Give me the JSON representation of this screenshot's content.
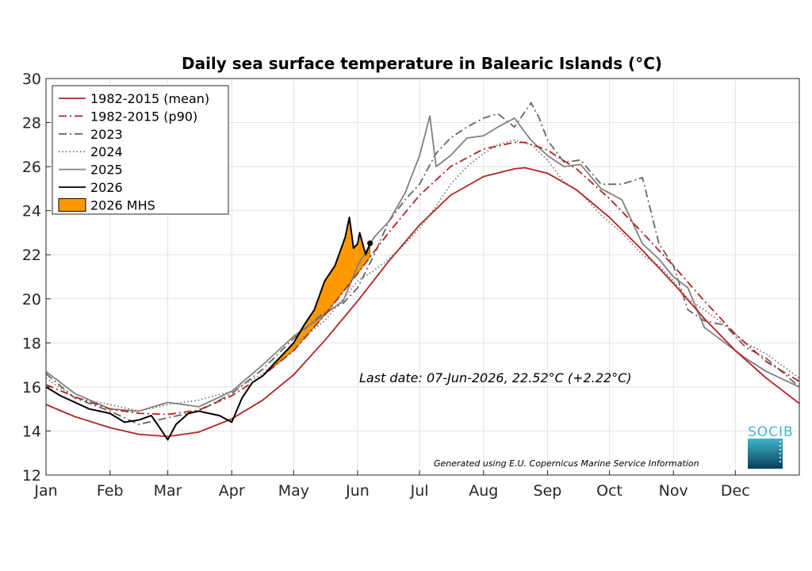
{
  "chart_data": {
    "type": "line",
    "title": "Daily sea surface temperature in Balearic Islands (°C)",
    "xlabel": "",
    "ylabel": "",
    "x_unit": "day of year",
    "xlim": [
      1,
      366
    ],
    "ylim": [
      12,
      30
    ],
    "yticks": [
      12,
      14,
      16,
      18,
      20,
      22,
      24,
      26,
      28,
      30
    ],
    "month_labels": [
      "Jan",
      "Feb",
      "Mar",
      "Apr",
      "May",
      "Jun",
      "Jul",
      "Aug",
      "Sep",
      "Oct",
      "Nov",
      "Dec"
    ],
    "grid": true,
    "legend_position": "top-left",
    "series": [
      {
        "name": "1982-2015 (mean)",
        "color": "#b22222",
        "style": "solid",
        "x": [
          1,
          15,
          32,
          46,
          60,
          75,
          91,
          106,
          121,
          136,
          152,
          167,
          182,
          197,
          213,
          228,
          233,
          244,
          258,
          274,
          289,
          305,
          320,
          335,
          350,
          366
        ],
        "y": [
          15.2,
          14.65,
          14.15,
          13.85,
          13.75,
          13.95,
          14.55,
          15.4,
          16.55,
          18.1,
          19.9,
          21.7,
          23.35,
          24.7,
          25.55,
          25.9,
          25.95,
          25.7,
          24.95,
          23.7,
          22.3,
          20.7,
          19.1,
          17.65,
          16.4,
          15.25
        ]
      },
      {
        "name": "1982-2015 (p90)",
        "color": "#b22222",
        "style": "dashdot",
        "x": [
          1,
          15,
          32,
          46,
          60,
          75,
          91,
          106,
          121,
          136,
          152,
          167,
          182,
          197,
          213,
          228,
          233,
          244,
          258,
          274,
          289,
          305,
          320,
          335,
          350,
          366
        ],
        "y": [
          16.1,
          15.55,
          15.0,
          14.8,
          14.75,
          14.95,
          15.6,
          16.5,
          17.65,
          19.25,
          21.15,
          23.0,
          24.7,
          26.0,
          26.8,
          27.1,
          27.1,
          26.75,
          25.9,
          24.55,
          23.1,
          21.5,
          19.9,
          18.4,
          17.15,
          16.25
        ]
      },
      {
        "name": "2023",
        "color": "#666666",
        "style": "dashdot",
        "x": [
          1,
          15,
          32,
          46,
          60,
          75,
          91,
          106,
          121,
          136,
          145,
          152,
          160,
          167,
          175,
          182,
          190,
          197,
          205,
          213,
          220,
          228,
          236,
          240,
          244,
          252,
          260,
          270,
          280,
          290,
          298,
          305,
          312,
          320,
          330,
          340,
          350,
          366
        ],
        "y": [
          16.6,
          15.5,
          14.9,
          14.3,
          14.6,
          14.9,
          15.7,
          16.8,
          18.2,
          19.4,
          19.8,
          20.5,
          22.0,
          23.5,
          24.5,
          25.2,
          26.6,
          27.3,
          27.8,
          28.2,
          28.4,
          27.8,
          28.9,
          28.2,
          27.2,
          26.2,
          26.3,
          25.2,
          25.2,
          25.5,
          22.5,
          21.5,
          19.5,
          19.0,
          18.8,
          17.8,
          17.3,
          16.0
        ]
      },
      {
        "name": "2024",
        "color": "#777777",
        "style": "dotted",
        "x": [
          1,
          15,
          32,
          46,
          60,
          75,
          91,
          106,
          121,
          136,
          145,
          152,
          160,
          167,
          175,
          182,
          190,
          197,
          205,
          213,
          220,
          228,
          236,
          244,
          252,
          260,
          270,
          280,
          290,
          298,
          305,
          312,
          320,
          330,
          340,
          350,
          366
        ],
        "y": [
          16.4,
          15.5,
          15.2,
          14.9,
          15.2,
          15.4,
          15.8,
          16.6,
          17.9,
          19.0,
          20.0,
          20.8,
          21.3,
          21.8,
          22.5,
          23.2,
          24.2,
          25.2,
          26.0,
          26.6,
          27.0,
          27.2,
          27.0,
          26.3,
          25.3,
          24.8,
          23.8,
          23.0,
          22.0,
          21.5,
          20.8,
          20.0,
          19.5,
          18.8,
          18.0,
          17.5,
          16.4
        ]
      },
      {
        "name": "2025",
        "color": "#808080",
        "style": "solid",
        "x": [
          1,
          15,
          32,
          46,
          60,
          75,
          91,
          106,
          121,
          136,
          145,
          152,
          160,
          167,
          175,
          182,
          187,
          190,
          197,
          205,
          213,
          220,
          228,
          236,
          244,
          252,
          260,
          270,
          280,
          290,
          298,
          305,
          312,
          320,
          330,
          340,
          350,
          366
        ],
        "y": [
          16.7,
          15.7,
          15.0,
          14.9,
          15.3,
          15.1,
          15.8,
          17.0,
          18.3,
          19.3,
          19.9,
          21.5,
          22.8,
          23.5,
          24.8,
          26.5,
          28.3,
          26.0,
          26.5,
          27.3,
          27.4,
          27.8,
          28.2,
          27.2,
          26.5,
          26.0,
          26.1,
          25.0,
          24.5,
          22.5,
          21.8,
          21.0,
          20.5,
          18.7,
          18.0,
          17.3,
          16.7,
          16.0
        ]
      },
      {
        "name": "2026",
        "color": "#000000",
        "style": "solid",
        "x": [
          1,
          8,
          15,
          22,
          32,
          39,
          46,
          52,
          55,
          60,
          64,
          70,
          75,
          80,
          85,
          91,
          96,
          101,
          106,
          113,
          121,
          126,
          131,
          136,
          141,
          146,
          148,
          150,
          152,
          153,
          155,
          156,
          158
        ],
        "y": [
          16.0,
          15.6,
          15.3,
          15.0,
          14.8,
          14.4,
          14.5,
          14.7,
          14.3,
          13.6,
          14.3,
          14.8,
          14.9,
          14.8,
          14.7,
          14.4,
          15.5,
          16.2,
          16.5,
          17.2,
          18.0,
          18.8,
          19.5,
          20.8,
          21.5,
          22.8,
          23.7,
          22.3,
          22.5,
          23.0,
          22.3,
          22.0,
          22.52
        ]
      }
    ],
    "mhs_fill": {
      "name": "2026 MHS",
      "color": "#ff9900"
    },
    "last_point": {
      "x": 158,
      "y": 22.52
    },
    "annotations": {
      "last_date": "Last date: 07-Jun-2026, 22.52°C (+2.22°C)",
      "credit": "Generated using E.U. Copernicus Marine Service Information"
    }
  },
  "logo": {
    "text": "SOCIB"
  }
}
